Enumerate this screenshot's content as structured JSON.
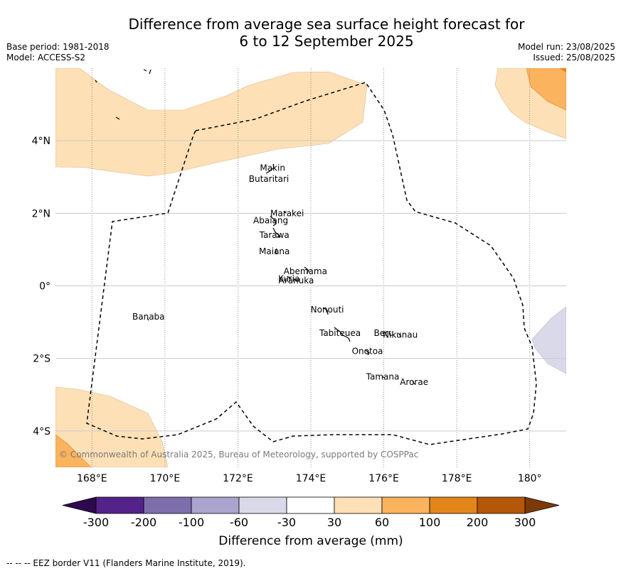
{
  "title_line1": "Difference from average sea surface height forecast for",
  "title_line2": "6 to 12 September 2025",
  "base_period": "Base period: 1981-2018",
  "model": "Model: ACCESS-S2",
  "model_run": "Model run: 23/08/2025",
  "issued": "Issued: 25/08/2025",
  "map": {
    "lon_labels": [
      "168°E",
      "170°E",
      "172°E",
      "174°E",
      "176°E",
      "178°E",
      "180°"
    ],
    "lat_labels": [
      "4°N",
      "2°N",
      "0°",
      "2°S",
      "4°S"
    ],
    "lon_range": [
      167,
      181
    ],
    "lat_range": [
      -5,
      6
    ],
    "places": [
      {
        "name": "Makin",
        "lon": 172.95,
        "lat": 3.25
      },
      {
        "name": "Butaritari",
        "lon": 172.85,
        "lat": 2.95
      },
      {
        "name": "Marakei",
        "lon": 173.35,
        "lat": 2.0
      },
      {
        "name": "Abaiang",
        "lon": 172.9,
        "lat": 1.8
      },
      {
        "name": "Tarawa",
        "lon": 173.0,
        "lat": 1.4
      },
      {
        "name": "Maiana",
        "lon": 173.0,
        "lat": 0.95
      },
      {
        "name": "Abemama",
        "lon": 173.85,
        "lat": 0.4
      },
      {
        "name": "Kuria",
        "lon": 173.4,
        "lat": 0.2
      },
      {
        "name": "Aranuka",
        "lon": 173.6,
        "lat": 0.15
      },
      {
        "name": "Nonouti",
        "lon": 174.45,
        "lat": -0.65
      },
      {
        "name": "Banaba",
        "lon": 169.55,
        "lat": -0.85
      },
      {
        "name": "Beru",
        "lon": 176.0,
        "lat": -1.3
      },
      {
        "name": "Nikunau",
        "lon": 176.45,
        "lat": -1.35
      },
      {
        "name": "Tabiteuea",
        "lon": 174.8,
        "lat": -1.3
      },
      {
        "name": "Onotoa",
        "lon": 175.55,
        "lat": -1.8
      },
      {
        "name": "Tamana",
        "lon": 175.97,
        "lat": -2.5
      },
      {
        "name": "Arorae",
        "lon": 176.83,
        "lat": -2.65
      }
    ],
    "copyright": "© Commonwealth of Australia 2025, Bureau of Meteorology, supported by COSPPac"
  },
  "colorbar": {
    "title": "Difference from average (mm)",
    "ticks": [
      "-300",
      "-200",
      "-100",
      "-60",
      "-30",
      "30",
      "60",
      "100",
      "200",
      "300"
    ],
    "colors": [
      "#2d0a4f",
      "#54238a",
      "#7e6fac",
      "#aba4ce",
      "#d9d9ea",
      "#ffffff",
      "#fde0b6",
      "#fbb35e",
      "#e3861a",
      "#b45708",
      "#7b3a07"
    ]
  },
  "footer": "--  --  -- EEZ border V11 (Flanders Marine Institute, 2019)."
}
